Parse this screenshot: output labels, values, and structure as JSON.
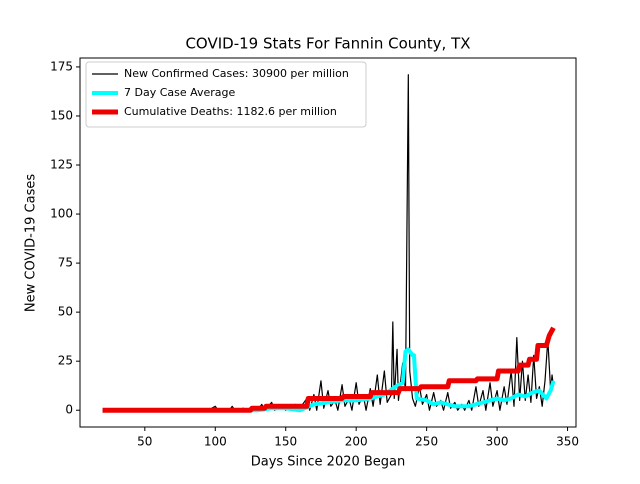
{
  "chart_data": {
    "type": "line",
    "title": "COVID-19 Stats For Fannin County, TX",
    "x_label": "Days Since 2020 Began",
    "y_label": "New COVID-19 Cases",
    "xlim": [
      4,
      356
    ],
    "ylim": [
      -8.55,
      179.55
    ],
    "xticks": [
      50,
      100,
      150,
      200,
      250,
      300,
      350
    ],
    "yticks": [
      0,
      25,
      50,
      75,
      100,
      125,
      150,
      175
    ],
    "grid": false,
    "legend": "upper left",
    "series": [
      {
        "name": "New Confirmed Cases: 30900 per million",
        "color": "#000000",
        "x": [
          20,
          95,
          100,
          102,
          110,
          112,
          114,
          120,
          122,
          130,
          133,
          135,
          140,
          142,
          148,
          150,
          157,
          159,
          165,
          167,
          170,
          172,
          175,
          177,
          180,
          182,
          185,
          187,
          190,
          192,
          195,
          197,
          200,
          202,
          205,
          207,
          210,
          212,
          215,
          217,
          220,
          222,
          225,
          226,
          227,
          229,
          230,
          233,
          235,
          237,
          238,
          240,
          242,
          245,
          247,
          250,
          252,
          255,
          257,
          260,
          262,
          265,
          267,
          270,
          272,
          275,
          277,
          280,
          282,
          285,
          287,
          290,
          292,
          295,
          297,
          300,
          302,
          305,
          307,
          310,
          312,
          314,
          316,
          318,
          320,
          322,
          324,
          326,
          328,
          330,
          332,
          334,
          336,
          338,
          339,
          340
        ],
        "values": [
          0,
          0,
          2,
          0,
          0,
          2,
          0,
          1,
          0,
          0,
          3,
          0,
          4,
          0,
          2,
          0,
          3,
          0,
          6,
          0,
          8,
          0,
          15,
          1,
          10,
          2,
          5,
          0,
          13,
          2,
          6,
          0,
          14,
          3,
          8,
          0,
          11,
          2,
          18,
          3,
          20,
          4,
          8,
          45,
          6,
          31,
          5,
          24,
          10,
          171,
          20,
          6,
          2,
          12,
          3,
          8,
          0,
          9,
          2,
          5,
          0,
          9,
          1,
          4,
          0,
          3,
          0,
          5,
          0,
          12,
          2,
          10,
          0,
          14,
          2,
          10,
          0,
          12,
          3,
          20,
          2,
          37,
          5,
          25,
          5,
          18,
          4,
          28,
          6,
          12,
          2,
          15,
          36,
          10,
          18,
          12
        ]
      },
      {
        "name": "7 Day Case Average",
        "color": "#00ffff",
        "x": [
          20,
          130,
          140,
          150,
          160,
          170,
          180,
          190,
          200,
          210,
          220,
          228,
          233,
          235,
          237,
          240,
          241,
          243,
          250,
          255,
          260,
          265,
          270,
          280,
          285,
          290,
          295,
          300,
          305,
          310,
          315,
          320,
          325,
          330,
          335,
          338,
          340
        ],
        "values": [
          0,
          0,
          1,
          1,
          0,
          3,
          4,
          5,
          5,
          6,
          8,
          12,
          14,
          30,
          31,
          28,
          28,
          6,
          5,
          3,
          4,
          3,
          2,
          2,
          3,
          4,
          5,
          6,
          5,
          6,
          8,
          7,
          9,
          10,
          6,
          10,
          15
        ]
      },
      {
        "name": "Cumulative Deaths: 1182.6 per million",
        "color": "#ee0000",
        "x": [
          20,
          125,
          126,
          135,
          136,
          165,
          166,
          190,
          191,
          210,
          211,
          230,
          231,
          245,
          246,
          265,
          266,
          285,
          286,
          300,
          301,
          315,
          316,
          322,
          323,
          328,
          329,
          335,
          337,
          340
        ],
        "values": [
          0,
          0,
          1,
          1,
          2,
          2,
          6,
          6,
          7,
          7,
          9,
          9,
          11,
          11,
          12,
          12,
          15,
          15,
          16,
          16,
          20,
          20,
          23,
          23,
          26,
          26,
          33,
          33,
          38,
          42
        ]
      }
    ]
  }
}
